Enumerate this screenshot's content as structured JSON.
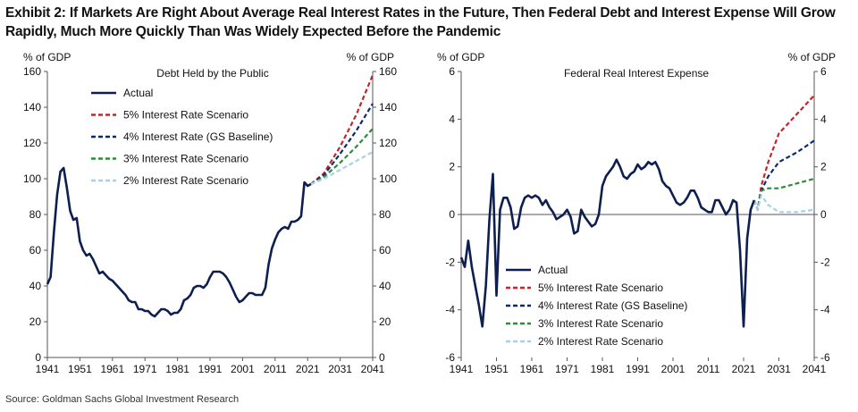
{
  "title": "Exhibit 2: If Markets Are Right About Average Real Interest Rates in the Future, Then Federal Debt and Interest Expense Will Grow Rapidly, Much More Quickly Than Was Widely Expected Before the Pandemic",
  "source": "Source: Goldman Sachs Global Investment Research",
  "colors": {
    "actual": "#0d1f4f",
    "s5": "#c0262d",
    "s4": "#0d2b6b",
    "s3": "#2e8b3d",
    "s2": "#a9cfe8",
    "axis": "#555555",
    "text": "#111111"
  },
  "chart_data": [
    {
      "type": "line",
      "title": "Debt Held by the Public",
      "ylabel_left": "% of GDP",
      "ylabel_right": "% of GDP",
      "xlim": [
        1941,
        2041
      ],
      "ylim": [
        0,
        160
      ],
      "x_ticks": [
        1941,
        1951,
        1961,
        1971,
        1981,
        1991,
        2001,
        2011,
        2021,
        2031,
        2041
      ],
      "y_ticks": [
        0,
        20,
        40,
        60,
        80,
        100,
        120,
        140,
        160
      ],
      "legend_position": "top-left",
      "grid": false,
      "series": [
        {
          "name": "Actual",
          "color_key": "actual",
          "dash": false,
          "x": [
            1941,
            1942,
            1943,
            1944,
            1945,
            1946,
            1947,
            1948,
            1949,
            1950,
            1951,
            1952,
            1953,
            1954,
            1955,
            1956,
            1957,
            1958,
            1959,
            1960,
            1961,
            1962,
            1963,
            1964,
            1965,
            1966,
            1967,
            1968,
            1969,
            1970,
            1971,
            1972,
            1973,
            1974,
            1975,
            1976,
            1977,
            1978,
            1979,
            1980,
            1981,
            1982,
            1983,
            1984,
            1985,
            1986,
            1987,
            1988,
            1989,
            1990,
            1991,
            1992,
            1993,
            1994,
            1995,
            1996,
            1997,
            1998,
            1999,
            2000,
            2001,
            2002,
            2003,
            2004,
            2005,
            2006,
            2007,
            2008,
            2009,
            2010,
            2011,
            2012,
            2013,
            2014,
            2015,
            2016,
            2017,
            2018,
            2019,
            2020,
            2021,
            2022
          ],
          "y": [
            41,
            45,
            70,
            91,
            104,
            106,
            95,
            82,
            77,
            78,
            65,
            60,
            57,
            58,
            55,
            51,
            47,
            48,
            46,
            44,
            43,
            41,
            39,
            37,
            35,
            32,
            31,
            31,
            27,
            27,
            26,
            26,
            24,
            23,
            25,
            27,
            27,
            26,
            24,
            25,
            25,
            27,
            32,
            33,
            35,
            39,
            40,
            40,
            39,
            41,
            45,
            48,
            48,
            48,
            47,
            45,
            42,
            38,
            34,
            31,
            32,
            34,
            36,
            36,
            35,
            35,
            35,
            39,
            52,
            61,
            66,
            70,
            72,
            73,
            72,
            76,
            76,
            77,
            79,
            98,
            96,
            97
          ]
        },
        {
          "name": "5% Interest Rate Scenario",
          "color_key": "s5",
          "dash": true,
          "x": [
            2022,
            2026,
            2031,
            2036,
            2041
          ],
          "y": [
            97,
            103,
            118,
            136,
            158
          ]
        },
        {
          "name": "4% Interest Rate (GS Baseline)",
          "color_key": "s4",
          "dash": true,
          "x": [
            2022,
            2026,
            2031,
            2036,
            2041
          ],
          "y": [
            97,
            102,
            114,
            127,
            142
          ]
        },
        {
          "name": "3% Interest Rate Scenario",
          "color_key": "s3",
          "dash": true,
          "x": [
            2022,
            2026,
            2031,
            2036,
            2041
          ],
          "y": [
            97,
            101,
            109,
            118,
            128
          ]
        },
        {
          "name": "2% Interest Rate Scenario",
          "color_key": "s2",
          "dash": true,
          "x": [
            2022,
            2026,
            2031,
            2036,
            2041
          ],
          "y": [
            97,
            100,
            105,
            110,
            115
          ]
        }
      ]
    },
    {
      "type": "line",
      "title": "Federal Real Interest Expense",
      "ylabel_left": "% of GDP",
      "ylabel_right": "% of GDP",
      "xlim": [
        1941,
        2041
      ],
      "ylim": [
        -6,
        6
      ],
      "x_ticks": [
        1941,
        1951,
        1961,
        1971,
        1981,
        1991,
        2001,
        2011,
        2021,
        2031,
        2041
      ],
      "y_ticks": [
        -6,
        -4,
        -2,
        0,
        2,
        4,
        6
      ],
      "legend_position": "bottom-left",
      "grid": false,
      "series": [
        {
          "name": "Actual",
          "color_key": "actual",
          "dash": false,
          "x": [
            1941,
            1942,
            1943,
            1944,
            1945,
            1946,
            1947,
            1948,
            1949,
            1950,
            1951,
            1952,
            1953,
            1954,
            1955,
            1956,
            1957,
            1958,
            1959,
            1960,
            1961,
            1962,
            1963,
            1964,
            1965,
            1966,
            1967,
            1968,
            1969,
            1970,
            1971,
            1972,
            1973,
            1974,
            1975,
            1976,
            1977,
            1978,
            1979,
            1980,
            1981,
            1982,
            1983,
            1984,
            1985,
            1986,
            1987,
            1988,
            1989,
            1990,
            1991,
            1992,
            1993,
            1994,
            1995,
            1996,
            1997,
            1998,
            1999,
            2000,
            2001,
            2002,
            2003,
            2004,
            2005,
            2006,
            2007,
            2008,
            2009,
            2010,
            2011,
            2012,
            2013,
            2014,
            2015,
            2016,
            2017,
            2018,
            2019,
            2020,
            2021,
            2022,
            2023,
            2024
          ],
          "y": [
            -1.8,
            -2.2,
            -1.1,
            -2.2,
            -3.0,
            -3.8,
            -4.7,
            -3.0,
            -0.2,
            1.7,
            -3.4,
            0.2,
            0.7,
            0.7,
            0.3,
            -0.6,
            -0.5,
            0.3,
            0.7,
            0.8,
            0.7,
            0.8,
            0.7,
            0.4,
            0.6,
            0.3,
            0.1,
            -0.2,
            -0.1,
            0.0,
            0.2,
            -0.1,
            -0.8,
            -0.7,
            0.2,
            -0.1,
            -0.3,
            -0.5,
            -0.4,
            0.0,
            1.2,
            1.6,
            1.8,
            2.0,
            2.3,
            2.0,
            1.6,
            1.5,
            1.7,
            1.8,
            2.1,
            1.9,
            2.0,
            2.2,
            2.1,
            2.2,
            1.9,
            1.4,
            1.2,
            1.1,
            0.8,
            0.5,
            0.4,
            0.5,
            0.7,
            1.0,
            1.0,
            0.7,
            0.3,
            0.2,
            0.1,
            0.1,
            0.6,
            0.6,
            0.3,
            0.0,
            0.2,
            0.6,
            0.5,
            -1.5,
            -4.7,
            -1.0,
            0.2,
            0.6
          ]
        },
        {
          "name": "5% Interest Rate Scenario",
          "color_key": "s5",
          "dash": true,
          "x": [
            2024,
            2025,
            2026,
            2028,
            2031,
            2036,
            2041
          ],
          "y": [
            0.6,
            0.2,
            1.2,
            2.2,
            3.4,
            4.2,
            5.0
          ]
        },
        {
          "name": "4% Interest Rate (GS Baseline)",
          "color_key": "s4",
          "dash": true,
          "x": [
            2024,
            2025,
            2026,
            2028,
            2031,
            2036,
            2041
          ],
          "y": [
            0.6,
            0.2,
            1.0,
            1.6,
            2.2,
            2.6,
            3.1
          ]
        },
        {
          "name": "3% Interest Rate Scenario",
          "color_key": "s3",
          "dash": true,
          "x": [
            2024,
            2025,
            2026,
            2028,
            2031,
            2036,
            2041
          ],
          "y": [
            0.6,
            0.2,
            1.0,
            1.1,
            1.1,
            1.3,
            1.5
          ]
        },
        {
          "name": "2% Interest Rate Scenario",
          "color_key": "s2",
          "dash": true,
          "x": [
            2024,
            2025,
            2026,
            2028,
            2031,
            2036,
            2041
          ],
          "y": [
            0.6,
            0.2,
            0.8,
            0.4,
            0.1,
            0.1,
            0.2
          ]
        }
      ]
    }
  ]
}
